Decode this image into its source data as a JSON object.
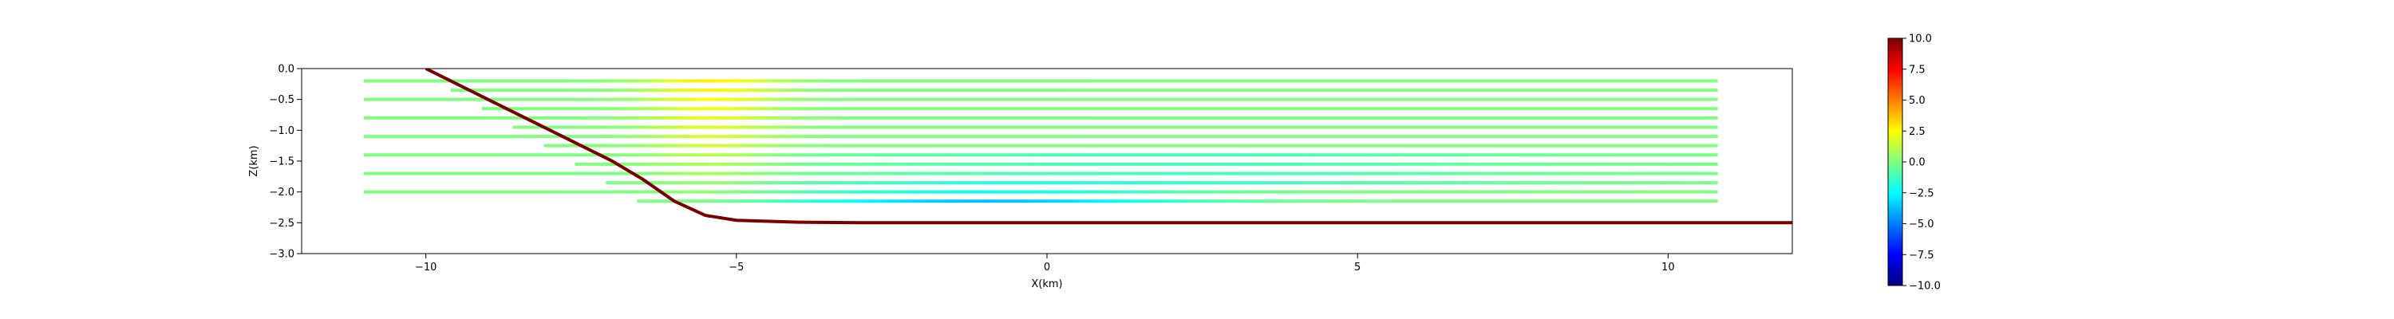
{
  "chart_data": {
    "type": "line",
    "xlabel": "X(km)",
    "ylabel": "Z(km)",
    "xlim": [
      -12,
      12
    ],
    "ylim": [
      -3.0,
      0.0
    ],
    "xticks": [
      -10,
      -5,
      0,
      5,
      10
    ],
    "xtick_labels": [
      "−10",
      "−5",
      "0",
      "5",
      "10"
    ],
    "yticks": [
      0.0,
      -0.5,
      -1.0,
      -1.5,
      -2.0,
      -2.5,
      -3.0
    ],
    "ytick_labels": [
      "0.0",
      "−0.5",
      "−1.0",
      "−1.5",
      "−2.0",
      "−2.5",
      "−3.0"
    ],
    "grid": false,
    "series": [
      {
        "role": "boundary",
        "color": "#7a0000",
        "x": [
          -10,
          -9,
          -8,
          -7,
          -6.5,
          -6,
          -5.5,
          -5,
          -4,
          -3,
          0,
          5,
          10,
          12
        ],
        "y": [
          0.0,
          -0.5,
          -1.0,
          -1.5,
          -1.8,
          -2.15,
          -2.38,
          -2.46,
          -2.49,
          -2.5,
          -2.5,
          -2.5,
          -2.5,
          -2.5
        ]
      }
    ],
    "streaks": {
      "x_right": 10.8,
      "z_values": [
        -0.2,
        -0.35,
        -0.5,
        -0.65,
        -0.8,
        -0.95,
        -1.1,
        -1.25,
        -1.4,
        -1.55,
        -1.7,
        -1.85,
        -2.0,
        -2.15
      ],
      "x_left": [
        -11,
        -9.6,
        -11,
        -9.1,
        -11,
        -8.6,
        -11,
        -8.1,
        -11,
        -7.6,
        -11,
        -7.1,
        -11,
        -6.6
      ]
    },
    "colorbar": {
      "vmin": -10.0,
      "vmax": 10.0,
      "ticks": [
        10.0,
        7.5,
        5.0,
        2.5,
        0.0,
        -2.5,
        -5.0,
        -7.5,
        -10.0
      ],
      "tick_labels": [
        "10.0",
        "7.5",
        "5.0",
        "2.5",
        "0.0",
        "−2.5",
        "−5.0",
        "−7.5",
        "−10.0"
      ],
      "colormap": "jet"
    }
  }
}
